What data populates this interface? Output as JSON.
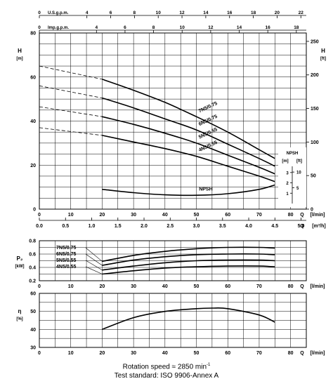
{
  "chart_data": [
    {
      "type": "line",
      "id": "head",
      "ylabel": "H",
      "yunit": "[m]",
      "ylim": [
        0,
        80
      ],
      "yticks": [
        0,
        20,
        40,
        60,
        80
      ],
      "y2label": "H",
      "y2unit": "[ft]",
      "y2ticks": [
        0,
        50,
        100,
        150,
        200,
        250
      ],
      "xlabel": "Q",
      "xunit": "[l/min]",
      "xlim": [
        0,
        85
      ],
      "xticks": [
        0,
        10,
        20,
        30,
        40,
        50,
        60,
        70,
        80
      ],
      "top_axes": [
        {
          "label": "U.S.g.p.m.",
          "ticks": [
            "0",
            "4",
            "6",
            "8",
            "10",
            "12",
            "14",
            "16",
            "18",
            "20",
            "22"
          ],
          "values": [
            0,
            4,
            6,
            8,
            10,
            12,
            14,
            16,
            18,
            20,
            22
          ]
        },
        {
          "label": "Imp.g.p.m.",
          "ticks": [
            "0",
            "4",
            "6",
            "8",
            "10",
            "12",
            "14",
            "16",
            "18"
          ],
          "values": [
            0,
            4,
            6,
            8,
            10,
            12,
            14,
            16,
            18
          ]
        }
      ],
      "bottom_axis2": {
        "ticks": [
          "0.0",
          "0.5",
          "1.0",
          "1.5",
          "2.0",
          "2.5",
          "3.0",
          "3.5",
          "4.0",
          "4.5",
          "5.0"
        ],
        "values": [
          0,
          0.5,
          1,
          1.5,
          2,
          2.5,
          3,
          3.5,
          4,
          4.5,
          5
        ],
        "unit": "[m³/h]"
      },
      "series": [
        {
          "name": "7N5/0.75",
          "x": [
            0,
            20,
            30,
            40,
            50,
            60,
            70,
            75
          ],
          "y": [
            65,
            59,
            54,
            48.5,
            42,
            35,
            27,
            23
          ],
          "dashed_until": 20
        },
        {
          "name": "6N5/0.75",
          "x": [
            0,
            20,
            30,
            40,
            50,
            60,
            70,
            75
          ],
          "y": [
            56,
            50.5,
            46,
            41,
            36,
            29.5,
            23,
            19.5
          ],
          "dashed_until": 20
        },
        {
          "name": "5N5/0.55",
          "x": [
            0,
            20,
            30,
            40,
            50,
            60,
            70,
            75
          ],
          "y": [
            46.5,
            42,
            38.5,
            34.5,
            30,
            24.5,
            19,
            16
          ],
          "dashed_until": 20
        },
        {
          "name": "4N5/0.55",
          "x": [
            0,
            20,
            30,
            40,
            50,
            60,
            70,
            75
          ],
          "y": [
            37,
            33.5,
            30.5,
            27.5,
            24,
            19.5,
            15,
            12.5
          ],
          "dashed_until": 20
        },
        {
          "name": "NPSH",
          "x": [
            20,
            30,
            40,
            50,
            60,
            70,
            75
          ],
          "y": [
            9,
            7.5,
            6.5,
            6.3,
            7,
            9,
            11
          ]
        }
      ],
      "inset": {
        "title": "NPSH",
        "units": [
          "[m]",
          "[ft]"
        ],
        "m_ticks": [
          1,
          2,
          3
        ],
        "ft_ticks": [
          5,
          10
        ]
      }
    },
    {
      "type": "line",
      "id": "power",
      "ylabel": "P₂",
      "yunit": "[kW]",
      "ylim": [
        0.2,
        0.8
      ],
      "yticks": [
        0.2,
        0.4,
        0.6,
        0.8
      ],
      "yticklabels": [
        "0.2",
        "0.4",
        "0.6",
        "0.8"
      ],
      "xlabel": "Q",
      "xunit": "[l/min]",
      "xlim": [
        0,
        85
      ],
      "xticks": [
        0,
        10,
        20,
        30,
        40,
        50,
        60,
        70,
        80
      ],
      "series": [
        {
          "name": "7N5/0.75",
          "x": [
            20,
            30,
            40,
            50,
            60,
            70,
            75
          ],
          "y": [
            0.49,
            0.58,
            0.64,
            0.68,
            0.7,
            0.7,
            0.69
          ]
        },
        {
          "name": "6N5/0.75",
          "x": [
            20,
            30,
            40,
            50,
            60,
            70,
            75
          ],
          "y": [
            0.43,
            0.51,
            0.56,
            0.59,
            0.6,
            0.6,
            0.59
          ]
        },
        {
          "name": "5N5/0.55",
          "x": [
            20,
            30,
            40,
            50,
            60,
            70,
            75
          ],
          "y": [
            0.36,
            0.42,
            0.47,
            0.5,
            0.51,
            0.51,
            0.5
          ]
        },
        {
          "name": "4N5/0.55",
          "x": [
            20,
            30,
            40,
            50,
            60,
            70,
            75
          ],
          "y": [
            0.3,
            0.35,
            0.39,
            0.41,
            0.42,
            0.42,
            0.41
          ]
        }
      ]
    },
    {
      "type": "line",
      "id": "efficiency",
      "ylabel": "η",
      "yunit": "[%]",
      "ylim": [
        30,
        60
      ],
      "yticks": [
        30,
        40,
        50,
        60
      ],
      "xlabel": "Q",
      "xunit": "[l/min]",
      "xlim": [
        0,
        85
      ],
      "xticks": [
        0,
        10,
        20,
        30,
        40,
        50,
        60,
        70,
        80
      ],
      "series": [
        {
          "name": "",
          "x": [
            20,
            30,
            40,
            50,
            55,
            60,
            70,
            75
          ],
          "y": [
            40,
            46.5,
            50,
            51.5,
            51.8,
            51.5,
            48,
            44
          ]
        }
      ]
    }
  ],
  "footer": {
    "rotation": "Rotation speed ≈ 2850 min",
    "rotation_sup": "-1",
    "standard": "Test standard: ISO 9906-Annex A"
  }
}
